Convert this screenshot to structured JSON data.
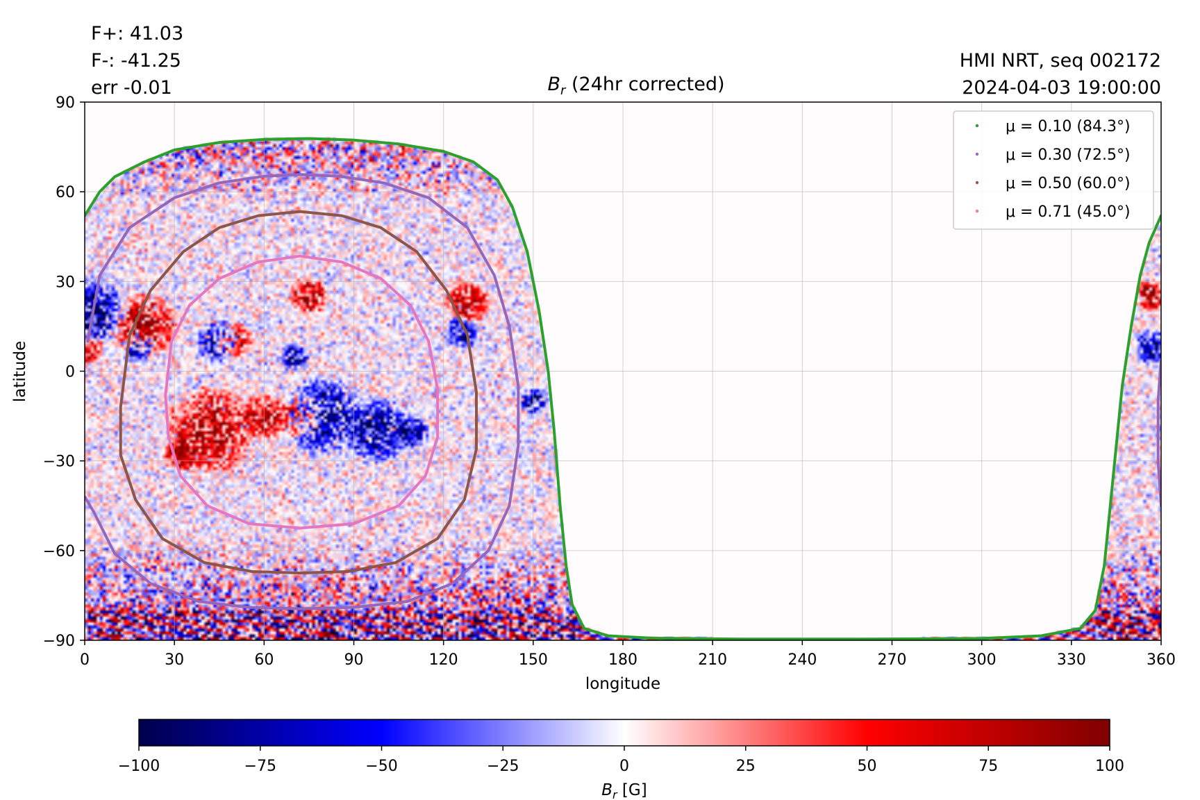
{
  "header": {
    "flux_pos": "F+: 41.03",
    "flux_neg": "F-: -41.25",
    "error": "err -0.01",
    "source": "HMI NRT, seq 002172",
    "timestamp": "2024-04-03 19:00:00"
  },
  "chart_data": {
    "type": "heatmap",
    "title": "B_r (24hr corrected)",
    "title_main": "B",
    "title_sub": "r",
    "title_rest": " (24hr corrected)",
    "xlabel": "longitude",
    "ylabel": "latitude",
    "xlim": [
      0,
      360
    ],
    "ylim": [
      -90,
      90
    ],
    "xticks": [
      0,
      30,
      60,
      90,
      120,
      150,
      180,
      210,
      240,
      270,
      300,
      330,
      360
    ],
    "yticks": [
      -90,
      -60,
      -30,
      0,
      30,
      60,
      90
    ],
    "xtick_labels": [
      "0",
      "30",
      "60",
      "90",
      "120",
      "150",
      "180",
      "210",
      "240",
      "270",
      "300",
      "330",
      "360"
    ],
    "ytick_labels": [
      "−90",
      "−60",
      "−30",
      "0",
      "30",
      "60",
      "90"
    ],
    "grid": true,
    "legend_position": "top-right",
    "legend": [
      {
        "label": "μ = 0.10 (84.3°)",
        "color": "#2ca02c"
      },
      {
        "label": "μ = 0.30 (72.5°)",
        "color": "#9467bd"
      },
      {
        "label": "μ = 0.50 (60.0°)",
        "color": "#8c564b"
      },
      {
        "label": "μ = 0.71 (45.0°)",
        "color": "#e377c2"
      }
    ],
    "contours": [
      {
        "name": "mu_0.10",
        "segments": [
          [
            [
              0,
              52
            ],
            [
              5,
              60
            ],
            [
              10,
              65
            ],
            [
              20,
              70
            ],
            [
              30,
              74
            ],
            [
              45,
              76.5
            ],
            [
              60,
              77.5
            ],
            [
              75,
              77.8
            ],
            [
              90,
              77.3
            ],
            [
              105,
              76
            ],
            [
              120,
              73.5
            ],
            [
              130,
              70
            ],
            [
              138,
              64
            ],
            [
              143,
              55
            ],
            [
              148,
              40
            ],
            [
              152,
              20
            ],
            [
              155,
              0
            ],
            [
              157,
              -20
            ],
            [
              159,
              -45
            ],
            [
              161,
              -65
            ],
            [
              163,
              -78
            ],
            [
              167,
              -86
            ],
            [
              175,
              -88.5
            ],
            [
              190,
              -89.3
            ],
            [
              220,
              -89.6
            ],
            [
              260,
              -89.6
            ],
            [
              300,
              -89.4
            ],
            [
              320,
              -88.5
            ],
            [
              333,
              -86
            ],
            [
              338,
              -80
            ],
            [
              341,
              -65
            ],
            [
              343,
              -45
            ],
            [
              345,
              -25
            ],
            [
              347,
              -5
            ],
            [
              350,
              15
            ],
            [
              353,
              32
            ],
            [
              356,
              43
            ],
            [
              360,
              52
            ]
          ]
        ]
      },
      {
        "name": "mu_0.30",
        "segments": [
          [
            [
              1,
              10
            ],
            [
              5,
              32
            ],
            [
              15,
              48
            ],
            [
              30,
              58
            ],
            [
              45,
              63
            ],
            [
              60,
              65.2
            ],
            [
              72,
              65.8
            ],
            [
              85,
              65.2
            ],
            [
              100,
              63
            ],
            [
              115,
              58
            ],
            [
              128,
              48
            ],
            [
              137,
              32
            ],
            [
              142,
              15
            ],
            [
              145,
              -5
            ],
            [
              145,
              -25
            ],
            [
              142,
              -45
            ],
            [
              135,
              -60
            ],
            [
              123,
              -71
            ],
            [
              108,
              -77
            ],
            [
              90,
              -79
            ],
            [
              72,
              -79.5
            ],
            [
              55,
              -79
            ],
            [
              38,
              -77
            ],
            [
              22,
              -71
            ],
            [
              10,
              -61
            ],
            [
              3,
              -47
            ],
            [
              0,
              -42
            ]
          ],
          [
            [
              360,
              4
            ],
            [
              359,
              -10
            ],
            [
              359,
              -30
            ],
            [
              360,
              -45
            ]
          ]
        ]
      },
      {
        "name": "mu_0.50",
        "segments": [
          [
            [
              12,
              -12
            ],
            [
              15,
              12
            ],
            [
              22,
              27
            ],
            [
              33,
              40
            ],
            [
              45,
              48
            ],
            [
              58,
              52
            ],
            [
              72,
              53.4
            ],
            [
              86,
              52
            ],
            [
              99,
              48
            ],
            [
              111,
              40
            ],
            [
              121,
              27
            ],
            [
              128,
              12
            ],
            [
              131,
              -7
            ],
            [
              131,
              -26
            ],
            [
              127,
              -43
            ],
            [
              118,
              -56
            ],
            [
              104,
              -64
            ],
            [
              88,
              -67
            ],
            [
              72,
              -67.5
            ],
            [
              56,
              -67
            ],
            [
              40,
              -64
            ],
            [
              26,
              -56
            ],
            [
              17,
              -43
            ],
            [
              12,
              -28
            ],
            [
              12,
              -12
            ]
          ]
        ]
      },
      {
        "name": "mu_0.71",
        "segments": [
          [
            [
              27,
              -8
            ],
            [
              29,
              10
            ],
            [
              35,
              22
            ],
            [
              45,
              31
            ],
            [
              58,
              36.5
            ],
            [
              72,
              38.5
            ],
            [
              86,
              36.5
            ],
            [
              99,
              31
            ],
            [
              109,
              22
            ],
            [
              115,
              10
            ],
            [
              118,
              -6
            ],
            [
              118,
              -22
            ],
            [
              114,
              -35
            ],
            [
              105,
              -45
            ],
            [
              90,
              -51
            ],
            [
              72,
              -52.5
            ],
            [
              55,
              -51
            ],
            [
              41,
              -45
            ],
            [
              32,
              -35
            ],
            [
              28,
              -22
            ],
            [
              27,
              -8
            ]
          ]
        ]
      }
    ],
    "active_regions": [
      {
        "lon": 3,
        "lat": 20,
        "r": 12,
        "sign": -1
      },
      {
        "lon": 0,
        "lat": 8,
        "r": 7,
        "sign": 1
      },
      {
        "lon": 20,
        "lat": 15,
        "r": 12,
        "sign": 1
      },
      {
        "lon": 18,
        "lat": 8,
        "r": 6,
        "sign": -1
      },
      {
        "lon": 45,
        "lat": 10,
        "r": 8,
        "sign": -1
      },
      {
        "lon": 50,
        "lat": 10,
        "r": 7,
        "sign": 1
      },
      {
        "lon": 42,
        "lat": -20,
        "r": 16,
        "sign": 1
      },
      {
        "lon": 60,
        "lat": -15,
        "r": 8,
        "sign": 1
      },
      {
        "lon": 75,
        "lat": 25,
        "r": 7,
        "sign": 1
      },
      {
        "lon": 70,
        "lat": 5,
        "r": 5,
        "sign": -1
      },
      {
        "lon": 32,
        "lat": -28,
        "r": 6,
        "sign": 1
      },
      {
        "lon": 72,
        "lat": -15,
        "r": 8,
        "sign": 1
      },
      {
        "lon": 80,
        "lat": -15,
        "r": 14,
        "sign": -1
      },
      {
        "lon": 98,
        "lat": -20,
        "r": 12,
        "sign": -1
      },
      {
        "lon": 110,
        "lat": -20,
        "r": 6,
        "sign": -1
      },
      {
        "lon": 128,
        "lat": 23,
        "r": 8,
        "sign": 1
      },
      {
        "lon": 126,
        "lat": 13,
        "r": 6,
        "sign": -1
      },
      {
        "lon": 150,
        "lat": -10,
        "r": 5,
        "sign": -1
      },
      {
        "lon": 357,
        "lat": 8,
        "r": 6,
        "sign": -1
      },
      {
        "lon": 356,
        "lat": 25,
        "r": 6,
        "sign": 1
      }
    ]
  },
  "colorbar": {
    "label_main": "B",
    "label_sub": "r",
    "label_rest": " [G]",
    "min": -100,
    "max": 100,
    "ticks": [
      -100,
      -75,
      -50,
      -25,
      0,
      25,
      50,
      75,
      100
    ],
    "tick_labels": [
      "−100",
      "−75",
      "−50",
      "−25",
      "0",
      "25",
      "50",
      "75",
      "100"
    ],
    "colors": [
      "#00004c",
      "#0000ff",
      "#ffffff",
      "#ff0000",
      "#800000"
    ]
  }
}
